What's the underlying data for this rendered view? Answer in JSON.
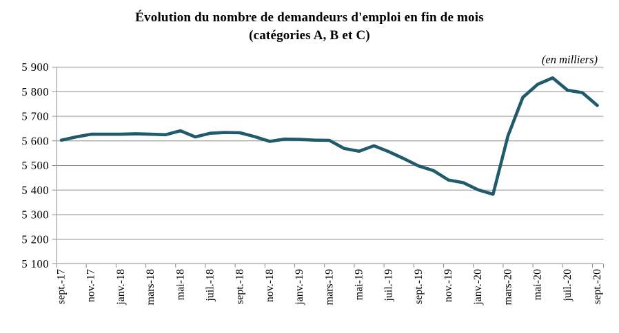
{
  "title": {
    "line1": "Évolution du nombre de demandeurs d'emploi en fin de mois",
    "line2": "(catégories A, B et C)"
  },
  "unit_note": "(en milliers)",
  "colors": {
    "line": "#1F5B6D",
    "grid": "#8C8C8C",
    "axis": "#8C8C8C",
    "text": "#000000",
    "background": "#FFFFFF"
  },
  "chart_data": {
    "type": "line",
    "title": "Évolution du nombre de demandeurs d'emploi en fin de mois (catégories A, B et C)",
    "unit": "en milliers",
    "xlabel": "",
    "ylabel": "",
    "ylim": [
      5100,
      5900
    ],
    "ytick_step": 100,
    "ytick_labels": [
      "5 100",
      "5 200",
      "5 300",
      "5 400",
      "5 500",
      "5 600",
      "5 700",
      "5 800",
      "5 900"
    ],
    "grid": true,
    "legend_position": "none",
    "x": [
      "sept.-17",
      "oct.-17",
      "nov.-17",
      "déc.-17",
      "janv.-18",
      "févr.-18",
      "mars-18",
      "avr.-18",
      "mai-18",
      "juin-18",
      "juil.-18",
      "août-18",
      "sept.-18",
      "oct.-18",
      "nov.-18",
      "déc.-18",
      "janv.-19",
      "févr.-19",
      "mars-19",
      "avr.-19",
      "mai-19",
      "juin-19",
      "juil.-19",
      "août-19",
      "sept.-19",
      "oct.-19",
      "nov.-19",
      "déc.-19",
      "janv.-20",
      "févr.-20",
      "mars-20",
      "avr.-20",
      "mai-20",
      "juin-20",
      "juil.-20",
      "août-20",
      "sept.-20"
    ],
    "values": [
      5603,
      5616,
      5627,
      5627,
      5627,
      5629,
      5627,
      5625,
      5641,
      5616,
      5631,
      5634,
      5633,
      5617,
      5598,
      5607,
      5606,
      5603,
      5602,
      5569,
      5558,
      5580,
      5556,
      5528,
      5498,
      5479,
      5441,
      5430,
      5401,
      5383,
      5620,
      5777,
      5830,
      5856,
      5806,
      5796,
      5744
    ],
    "xtick_labels": [
      "sept.-17",
      "nov.-17",
      "janv.-18",
      "mars-18",
      "mai-18",
      "juil.-18",
      "sept.-18",
      "nov.-18",
      "janv.-19",
      "mars-19",
      "mai-19",
      "juil.-19",
      "sept.-19",
      "nov.-19",
      "janv.-20",
      "mars-20",
      "mai-20",
      "juil.-20",
      "sept.-20"
    ]
  }
}
